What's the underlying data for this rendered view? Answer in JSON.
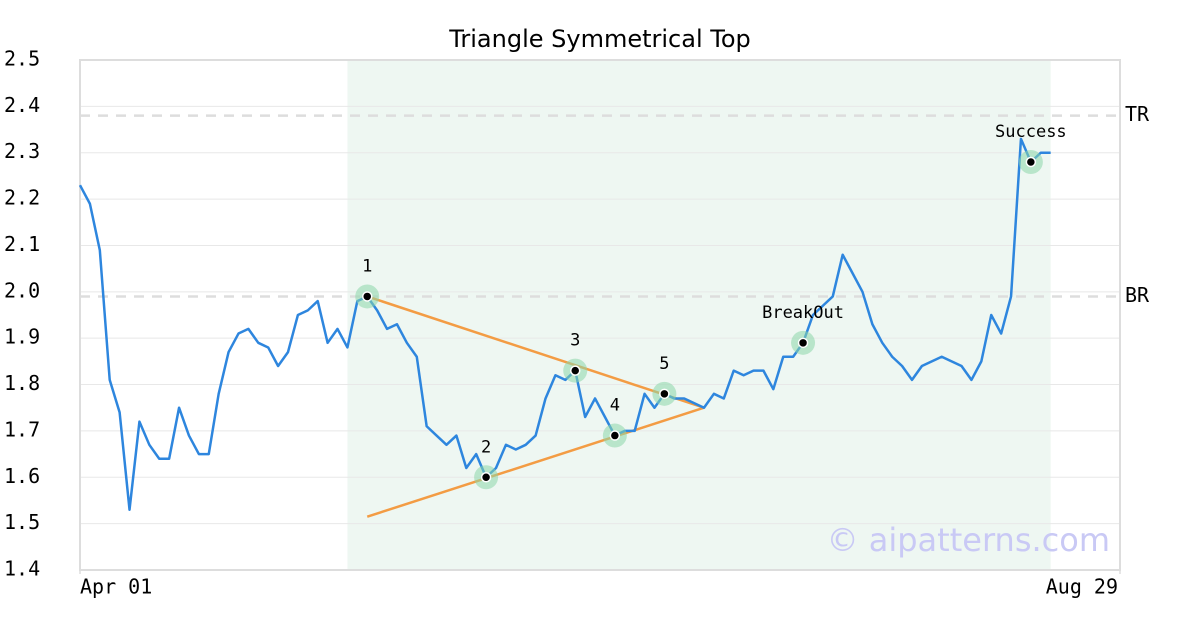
{
  "chart_data": {
    "type": "line",
    "title": "Triangle Symmetrical Top",
    "values": [
      2.23,
      2.19,
      2.09,
      1.81,
      1.74,
      1.53,
      1.72,
      1.67,
      1.64,
      1.64,
      1.75,
      1.69,
      1.65,
      1.65,
      1.78,
      1.87,
      1.91,
      1.92,
      1.89,
      1.88,
      1.84,
      1.87,
      1.95,
      1.96,
      1.98,
      1.89,
      1.92,
      1.88,
      1.98,
      1.99,
      1.96,
      1.92,
      1.93,
      1.89,
      1.86,
      1.71,
      1.69,
      1.67,
      1.69,
      1.62,
      1.65,
      1.6,
      1.62,
      1.67,
      1.66,
      1.67,
      1.69,
      1.77,
      1.82,
      1.81,
      1.83,
      1.73,
      1.77,
      1.73,
      1.69,
      1.7,
      1.7,
      1.78,
      1.75,
      1.78,
      1.77,
      1.77,
      1.76,
      1.75,
      1.78,
      1.77,
      1.83,
      1.82,
      1.83,
      1.83,
      1.79,
      1.86,
      1.86,
      1.89,
      1.95,
      1.97,
      1.99,
      2.08,
      2.04,
      2.0,
      1.93,
      1.89,
      1.86,
      1.84,
      1.81,
      1.84,
      1.85,
      1.86,
      1.85,
      1.84,
      1.81,
      1.85,
      1.95,
      1.91,
      1.99,
      2.33,
      2.28,
      2.3,
      2.3
    ],
    "color": "#2e86de",
    "xlim": [
      0,
      105
    ],
    "xticks": [
      {
        "value": 0,
        "label": "Apr 01"
      },
      {
        "value": 105,
        "label": "Aug 29"
      }
    ],
    "ylim": [
      1.4,
      2.5
    ],
    "yticks": [
      1.4,
      1.5,
      1.6,
      1.7,
      1.8,
      1.9,
      {
        "value": 2,
        "label": "2.0"
      },
      2.1,
      2.2,
      2.3,
      2.4,
      2.5
    ],
    "grid": true,
    "highlight": [
      27,
      98
    ],
    "levels": [
      {
        "label": "TR",
        "value": 2.38
      },
      {
        "label": "BR",
        "value": 1.99
      }
    ],
    "trend_lines": [
      {
        "color": "#f39c44",
        "from": [
          29,
          1.99
        ],
        "to": [
          63,
          1.75
        ]
      },
      {
        "color": "#f39c44",
        "from": [
          29,
          1.515
        ],
        "to": [
          63,
          1.75
        ]
      }
    ],
    "annotations": [
      {
        "label": "1",
        "x": 29,
        "y": 1.99
      },
      {
        "label": "2",
        "x": 41,
        "y": 1.6
      },
      {
        "label": "3",
        "x": 50,
        "y": 1.83
      },
      {
        "label": "4",
        "x": 54,
        "y": 1.69
      },
      {
        "label": "5",
        "x": 59,
        "y": 1.78
      },
      {
        "label": "BreakOut",
        "x": 73,
        "y": 1.89
      },
      {
        "label": "Success",
        "x": 96,
        "y": 2.28
      }
    ],
    "watermark": "© aipatterns.com"
  }
}
